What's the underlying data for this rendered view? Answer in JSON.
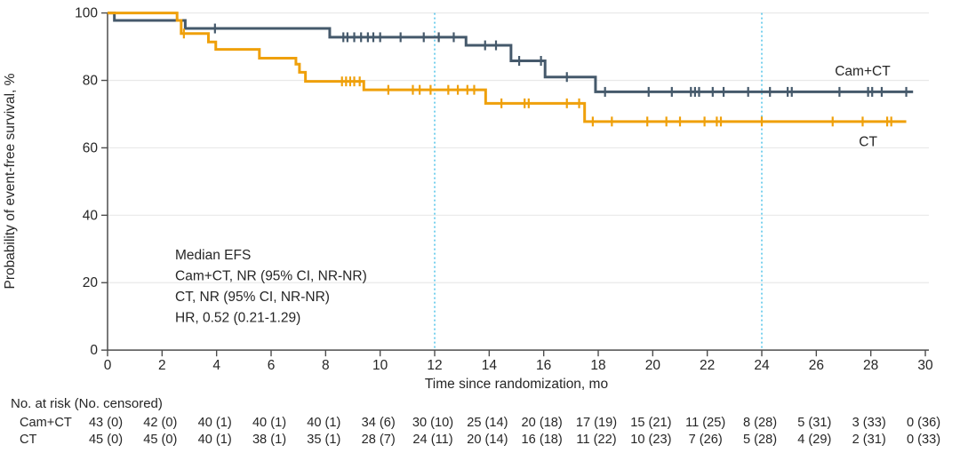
{
  "chart_data": {
    "type": "km_step",
    "title": "",
    "xlabel": "Time since randomization, mo",
    "ylabel": "Probability of event-free survival, %",
    "xlim": [
      0,
      30
    ],
    "ylim": [
      0,
      100
    ],
    "x_ticks": [
      0,
      2,
      4,
      6,
      8,
      10,
      12,
      14,
      16,
      18,
      20,
      22,
      24,
      26,
      28,
      30
    ],
    "y_ticks": [
      0,
      20,
      40,
      60,
      80,
      100
    ],
    "grid": "horizontal-light",
    "reference_lines_x": [
      12,
      24
    ],
    "reference_line_color": "#58C6EA",
    "grid_color": "#E9E9E9",
    "axis_color": "#4D4D4D",
    "text_color": "#262626",
    "annotation": {
      "lines": [
        "Median EFS",
        "Cam+CT, NR (95% CI, NR-NR)",
        "CT, NR (95% CI, NR-NR)",
        "HR, 0.52 (0.21-1.29)"
      ]
    },
    "series": [
      {
        "name": "Cam+CT",
        "color": "#45596B",
        "steps": [
          [
            0,
            100
          ],
          [
            0.25,
            97.8
          ],
          [
            2.85,
            95.4
          ],
          [
            8.15,
            92.8
          ],
          [
            13.15,
            90.4
          ],
          [
            14.8,
            85.8
          ],
          [
            16.05,
            81.0
          ],
          [
            17.9,
            76.6
          ]
        ],
        "end_x": 29.55,
        "censor_x": [
          3.94,
          8.65,
          8.8,
          9.05,
          9.3,
          9.55,
          9.75,
          10.0,
          10.75,
          11.6,
          12.15,
          12.7,
          13.85,
          14.25,
          15.1,
          15.9,
          16.85,
          18.25,
          19.85,
          20.7,
          21.4,
          21.55,
          21.7,
          22.2,
          22.6,
          23.5,
          24.3,
          24.95,
          25.1,
          26.85,
          27.9,
          28.05,
          28.4,
          29.3
        ],
        "label_pos": {
          "x_mo": 27.7,
          "y_pct": 81.5
        }
      },
      {
        "name": "CT",
        "color": "#EFA00B",
        "steps": [
          [
            0,
            100
          ],
          [
            2.55,
            97.8
          ],
          [
            2.7,
            93.9
          ],
          [
            3.7,
            91.4
          ],
          [
            3.97,
            89.2
          ],
          [
            5.57,
            86.6
          ],
          [
            6.91,
            84.8
          ],
          [
            7.04,
            82.4
          ],
          [
            7.26,
            79.7
          ],
          [
            9.4,
            77.2
          ],
          [
            13.87,
            73.2
          ],
          [
            17.5,
            67.8
          ]
        ],
        "end_x": 29.3,
        "censor_x": [
          2.8,
          8.6,
          8.75,
          8.9,
          9.05,
          9.25,
          10.3,
          11.2,
          11.45,
          11.85,
          12.5,
          12.85,
          13.2,
          13.45,
          14.45,
          15.3,
          15.45,
          16.85,
          17.3,
          17.8,
          18.5,
          19.8,
          20.5,
          21.0,
          21.9,
          22.35,
          22.5,
          24.0,
          26.6,
          27.7,
          28.6,
          28.75
        ],
        "label_pos": {
          "x_mo": 27.9,
          "y_pct": 60.5
        }
      }
    ],
    "risk_table": {
      "header": "No. at risk (No. censored)",
      "time_points": [
        0,
        2,
        4,
        6,
        8,
        10,
        12,
        14,
        16,
        18,
        20,
        22,
        24,
        26,
        28,
        30
      ],
      "rows": [
        {
          "label": "Cam+CT",
          "values": [
            "43 (0)",
            "42 (0)",
            "40 (1)",
            "40 (1)",
            "40 (1)",
            "34 (6)",
            "30 (10)",
            "25 (14)",
            "20 (18)",
            "17 (19)",
            "15 (21)",
            "11 (25)",
            "8 (28)",
            "5 (31)",
            "3 (33)",
            "0 (36)"
          ]
        },
        {
          "label": "CT",
          "values": [
            "45 (0)",
            "45 (0)",
            "40 (1)",
            "38 (1)",
            "35 (1)",
            "28 (7)",
            "24 (11)",
            "20 (14)",
            "16 (18)",
            "11 (22)",
            "10 (23)",
            "7 (26)",
            "5 (28)",
            "4 (29)",
            "2 (31)",
            "0 (33)"
          ]
        }
      ]
    }
  }
}
